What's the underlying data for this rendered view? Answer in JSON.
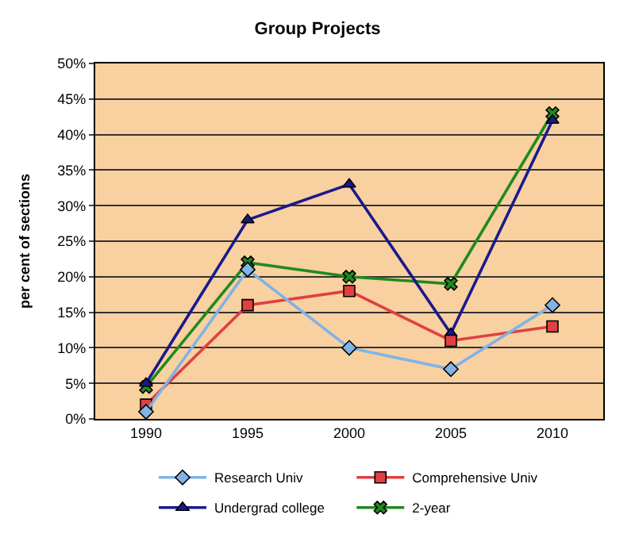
{
  "chart_data": {
    "type": "line",
    "title": "Group Projects",
    "ylabel": "per cent of sections",
    "categories": [
      "1990",
      "1995",
      "2000",
      "2005",
      "2010"
    ],
    "series": [
      {
        "name": "Research Univ",
        "color": "#80b3e6",
        "marker": "diamond",
        "values": [
          1,
          21,
          10,
          7,
          16
        ]
      },
      {
        "name": "Comprehensive Univ",
        "color": "#e0403f",
        "marker": "square",
        "values": [
          2,
          16,
          18,
          11,
          13
        ]
      },
      {
        "name": "Undergrad college",
        "color": "#1a1a8c",
        "marker": "triangle",
        "values": [
          5,
          28,
          33,
          12,
          42
        ]
      },
      {
        "name": "2-year",
        "color": "#1f8a1f",
        "marker": "cross",
        "values": [
          4.5,
          22,
          20,
          19,
          43
        ]
      }
    ],
    "ylim": [
      0,
      50
    ],
    "yticks": [
      {
        "value": 0,
        "label": "0%"
      },
      {
        "value": 5,
        "label": "5%"
      },
      {
        "value": 10,
        "label": "10%"
      },
      {
        "value": 15,
        "label": "15%"
      },
      {
        "value": 20,
        "label": "20%"
      },
      {
        "value": 25,
        "label": "25%"
      },
      {
        "value": 30,
        "label": "30%"
      },
      {
        "value": 35,
        "label": "35%"
      },
      {
        "value": 40,
        "label": "40%"
      },
      {
        "value": 45,
        "label": "45%"
      },
      {
        "value": 50,
        "label": "50%"
      }
    ],
    "grid": "y",
    "legend": "bottom",
    "line_style": "solid"
  }
}
